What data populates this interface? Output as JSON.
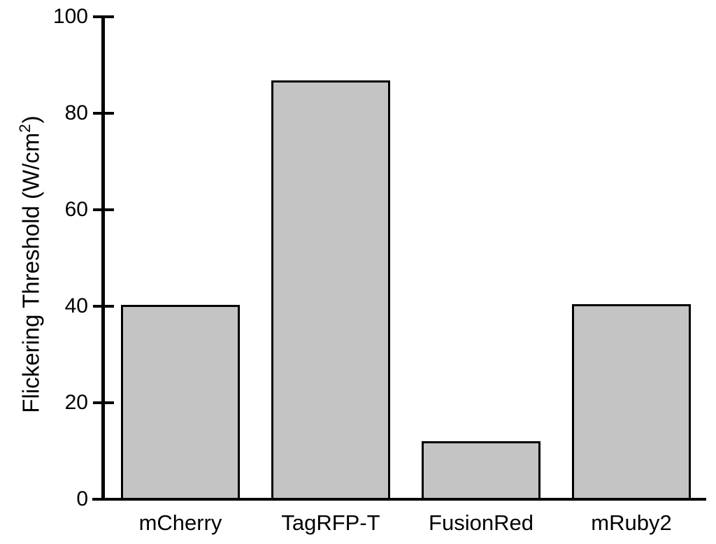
{
  "chart_data": {
    "type": "bar",
    "title": "",
    "categories": [
      "mCherry",
      "TagRFP-T",
      "FusionRed",
      "mRuby2"
    ],
    "values": [
      40.3,
      86.8,
      12,
      40.4
    ],
    "series": [
      {
        "name": "Flickering Threshold",
        "values": [
          40.3,
          86.8,
          12,
          40.4
        ]
      }
    ],
    "xlabel": "",
    "ylabel": "Flickering Threshold (W/cm2)",
    "ylabel_parts": {
      "prefix": "Flickering Threshold (W/cm",
      "superscript": "2",
      "suffix": ")"
    },
    "ylim": [
      0,
      100
    ],
    "yticks": [
      0,
      20,
      40,
      60,
      80,
      100
    ],
    "ytick_labels": [
      "0",
      "20",
      "40",
      "60",
      "80",
      "100"
    ],
    "grid": false,
    "legend": "none",
    "colors": {
      "bar_fill": "#c4c4c4",
      "bar_border": "#000000",
      "axis": "#000000",
      "text": "#000000",
      "background": "#ffffff"
    }
  }
}
